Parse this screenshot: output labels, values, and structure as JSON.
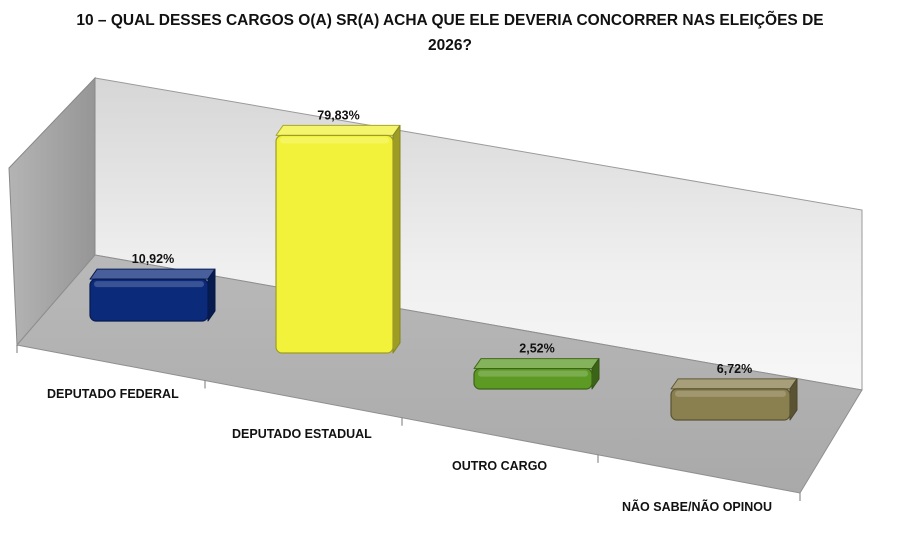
{
  "chart_data": {
    "type": "bar",
    "title": "10 – QUAL DESSES CARGOS O(A) SR(A) ACHA QUE ELE DEVERIA CONCORRER NAS ELEIÇÕES DE 2026?",
    "categories": [
      "DEPUTADO FEDERAL",
      "DEPUTADO ESTADUAL",
      "OUTRO CARGO",
      "NÃO SABE/NÃO OPINOU"
    ],
    "values": [
      10.92,
      79.83,
      2.52,
      6.72
    ],
    "value_labels": [
      "10,92%",
      "79,83%",
      "2,52%",
      "6,72%"
    ],
    "colors": [
      "#0b2a7a",
      "#f2f23a",
      "#5c9a24",
      "#8a7f4e"
    ],
    "ylim": [
      0,
      100
    ],
    "grid": false,
    "legend": "none",
    "style": "3d-perspective"
  }
}
